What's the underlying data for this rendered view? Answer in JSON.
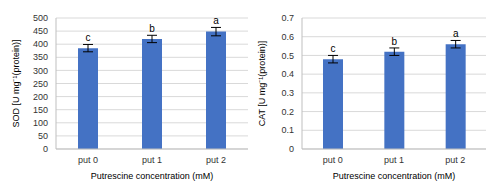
{
  "chart_data": [
    {
      "type": "bar",
      "categories": [
        "put 0",
        "put 1",
        "put 2"
      ],
      "values": [
        385,
        420,
        448
      ],
      "error": [
        14,
        14,
        16
      ],
      "annotations": [
        "c",
        "b",
        "a"
      ],
      "color": "#4472c4",
      "ylim": [
        0,
        500
      ],
      "yticks": [
        0,
        50,
        100,
        150,
        200,
        250,
        300,
        350,
        400,
        450,
        500
      ],
      "y_label": "SOD [U mg⁻¹(protein)]",
      "x_label": "Putrescine concentration (mM)",
      "grid": true
    },
    {
      "type": "bar",
      "categories": [
        "put 0",
        "put 1",
        "put 2"
      ],
      "values": [
        0.48,
        0.52,
        0.56
      ],
      "error": [
        0.02,
        0.02,
        0.02
      ],
      "annotations": [
        "c",
        "b",
        "a"
      ],
      "color": "#4472c4",
      "ylim": [
        0,
        0.7
      ],
      "yticks": [
        0,
        0.1,
        0.2,
        0.3,
        0.4,
        0.5,
        0.6,
        0.7
      ],
      "y_label": "CAT [U mg⁻¹(protein)]",
      "x_label": "Putrescine concentration (mM)",
      "grid": true
    }
  ]
}
